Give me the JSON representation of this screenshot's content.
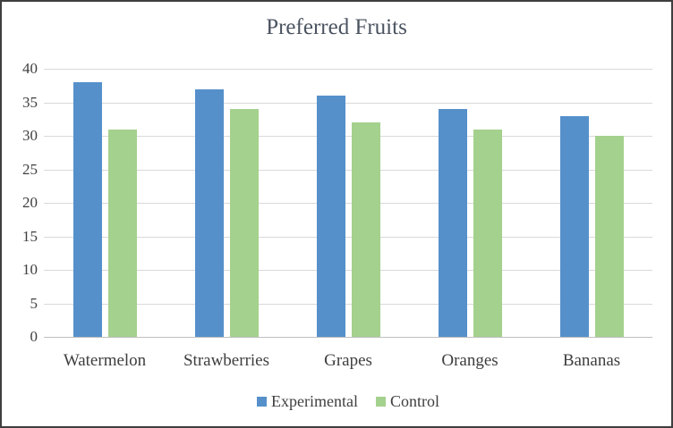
{
  "chart_data": {
    "type": "bar",
    "title": "Preferred Fruits",
    "categories": [
      "Watermelon",
      "Strawberries",
      "Grapes",
      "Oranges",
      "Bananas"
    ],
    "series": [
      {
        "name": "Experimental",
        "color": "#5590CB",
        "values": [
          38,
          37,
          36,
          34,
          33
        ]
      },
      {
        "name": "Control",
        "color": "#A4D18D",
        "values": [
          31,
          34,
          32,
          31,
          30
        ]
      }
    ],
    "xlabel": "",
    "ylabel": "",
    "ylim": [
      0,
      40
    ],
    "ytick_step": 5,
    "yticks": [
      0,
      5,
      10,
      15,
      20,
      25,
      30,
      35,
      40
    ],
    "grid": true,
    "legend_position": "bottom"
  },
  "colors": {
    "background": "#FFFFFF",
    "frame_border": "#3F3F3F",
    "gridline": "#D9D9D9",
    "axis_line": "#BFBFBF",
    "text": "#3E3E3E",
    "title": "#4B5360"
  }
}
